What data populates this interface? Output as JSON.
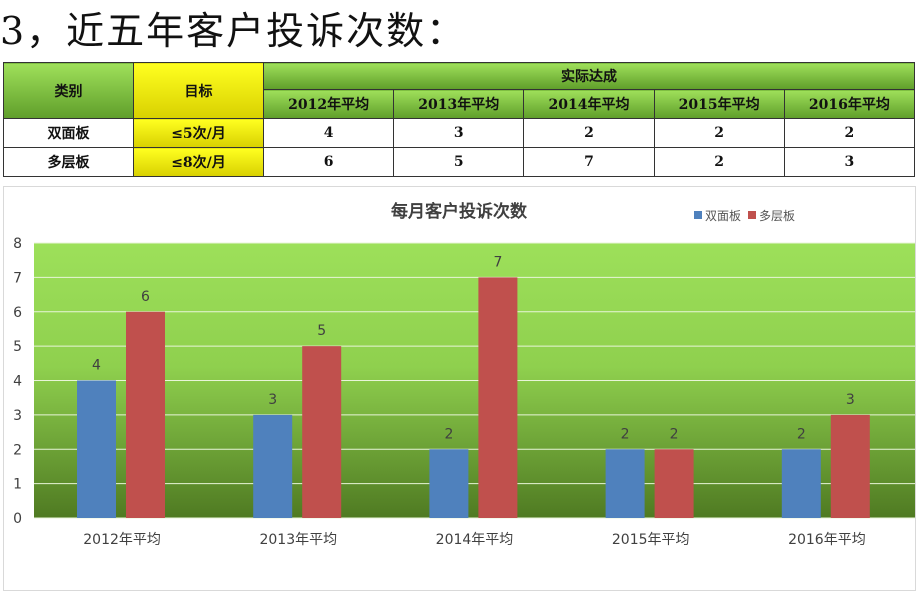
{
  "heading": "3，近五年客户投诉次数：",
  "table": {
    "h_category": "类别",
    "h_target": "目标",
    "h_actual": "实际达成",
    "years": [
      "2012年平均",
      "2013年平均",
      "2014年平均",
      "2015年平均",
      "2016年平均"
    ],
    "rows": [
      {
        "name": "双面板",
        "target": "≤5次/月",
        "values": [
          "4",
          "3",
          "2",
          "2",
          "2"
        ]
      },
      {
        "name": "多层板",
        "target": "≤8次/月",
        "values": [
          "6",
          "5",
          "7",
          "2",
          "3"
        ]
      }
    ]
  },
  "chart_data": {
    "type": "bar",
    "title": "每月客户投诉次数",
    "categories": [
      "2012年平均",
      "2013年平均",
      "2014年平均",
      "2015年平均",
      "2016年平均"
    ],
    "series": [
      {
        "name": "双面板",
        "values": [
          4,
          3,
          2,
          2,
          2
        ],
        "color": "#4f81bd"
      },
      {
        "name": "多层板",
        "values": [
          6,
          5,
          7,
          2,
          3
        ],
        "color": "#c0504d"
      }
    ],
    "ylim": [
      0,
      8
    ],
    "yticks": [
      0,
      1,
      2,
      3,
      4,
      5,
      6,
      7,
      8
    ],
    "grid": true,
    "legend": "top-right",
    "background_gradient": [
      "#9de05a",
      "#4f7a22"
    ]
  }
}
